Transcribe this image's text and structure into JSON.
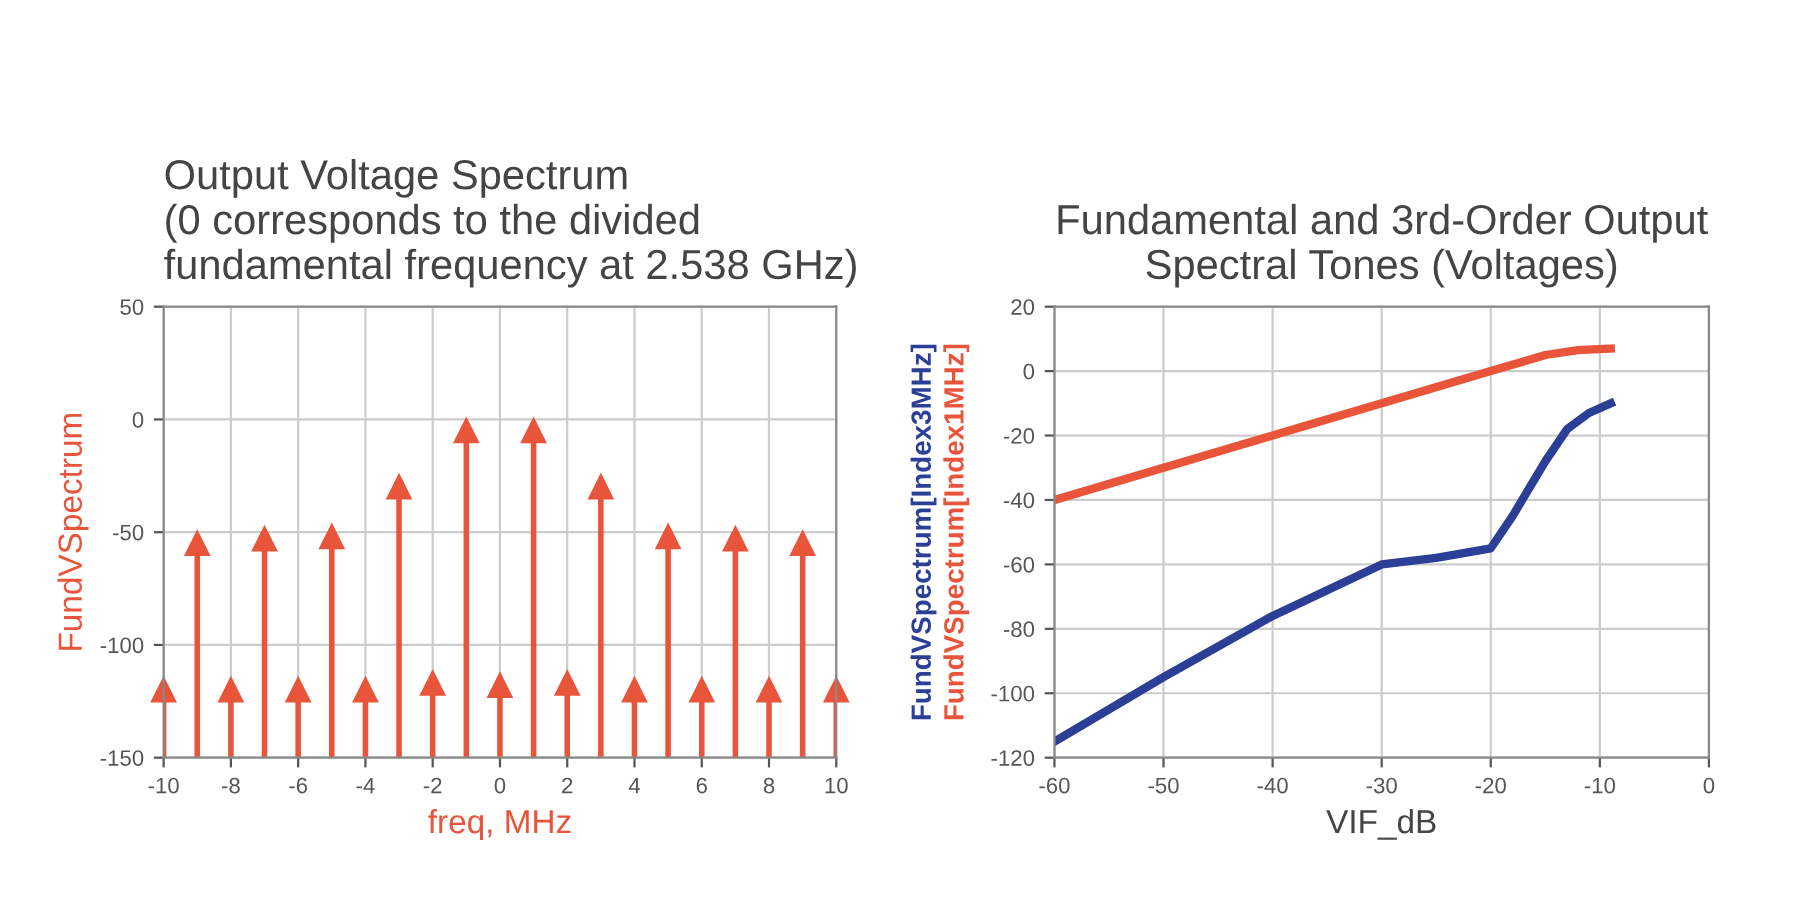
{
  "chart_data": [
    {
      "type": "scatter",
      "title": "Output Voltage Spectrum\n(0 corresponds to the divided\nfundamental frequency at 2.538 GHz)",
      "xlabel": "freq, MHz",
      "ylabel": "FundVSpectrum",
      "x": [
        -10,
        -9,
        -8,
        -7,
        -6,
        -5,
        -4,
        -3,
        -2,
        -1,
        0,
        1,
        2,
        3,
        4,
        5,
        6,
        7,
        8,
        9,
        10
      ],
      "series": [
        {
          "color": "#e8553a",
          "values": [
            -120,
            -55,
            -120,
            -53,
            -120,
            -52,
            -120,
            -30,
            -117,
            -5,
            -118,
            -5,
            -117,
            -30,
            -120,
            -52,
            -120,
            -53,
            -120,
            -55,
            -120
          ],
          "errors": [
            [
              -150,
              -120
            ],
            [
              -150,
              -55
            ],
            [
              -150,
              -120
            ],
            [
              -150,
              -53
            ],
            [
              -150,
              -120
            ],
            [
              -150,
              -52
            ],
            [
              -150,
              -120
            ],
            [
              -150,
              -30
            ],
            [
              -150,
              -117
            ],
            [
              -150,
              -5
            ],
            [
              -150,
              -118
            ],
            [
              -150,
              -5
            ],
            [
              -150,
              -117
            ],
            [
              -150,
              -30
            ],
            [
              -150,
              -120
            ],
            [
              -150,
              -52
            ],
            [
              -150,
              -120
            ],
            [
              -150,
              -53
            ],
            [
              -150,
              -120
            ],
            [
              -150,
              -55
            ],
            [
              -150,
              -120
            ]
          ]
        }
      ],
      "xlim": [
        -10,
        10
      ],
      "xticks": [
        -10,
        -8,
        -6,
        -4,
        -2,
        0,
        2,
        4,
        6,
        8,
        10
      ],
      "ylim": [
        -150,
        50
      ],
      "yticks": [
        -150,
        -100,
        -50,
        0,
        50
      ],
      "grid": true,
      "marker": "triangle"
    },
    {
      "type": "line",
      "title": "Fundamental and 3rd-Order Output\nSpectral Tones (Voltages)",
      "xlabel": "VIF_dB",
      "series": [
        {
          "name": "FundVSpectrum[Index3MHz]",
          "color": "#2c3f96",
          "x": [
            -60,
            -50,
            -40,
            -30,
            -25,
            -20,
            -18,
            -15,
            -13,
            -11,
            -9
          ],
          "values": [
            -115,
            -95,
            -76,
            -60,
            -58,
            -55,
            -45,
            -28,
            -18,
            -13,
            -10
          ]
        },
        {
          "name": "FundVSpectrum[Index1MHz]",
          "color": "#e8553a",
          "x": [
            -60,
            -50,
            -40,
            -30,
            -20,
            -17,
            -15,
            -12,
            -9
          ],
          "values": [
            -40,
            -30,
            -20,
            -10,
            0,
            3,
            5,
            6.5,
            7
          ]
        }
      ],
      "xlim": [
        -60,
        0
      ],
      "xticks": [
        -60,
        -50,
        -40,
        -30,
        -20,
        -10,
        0
      ],
      "ylim": [
        -120,
        20
      ],
      "yticks": [
        -120,
        -100,
        -80,
        -60,
        -40,
        -20,
        0,
        20
      ],
      "grid": true,
      "marker": "none",
      "line_style": "solid"
    }
  ]
}
